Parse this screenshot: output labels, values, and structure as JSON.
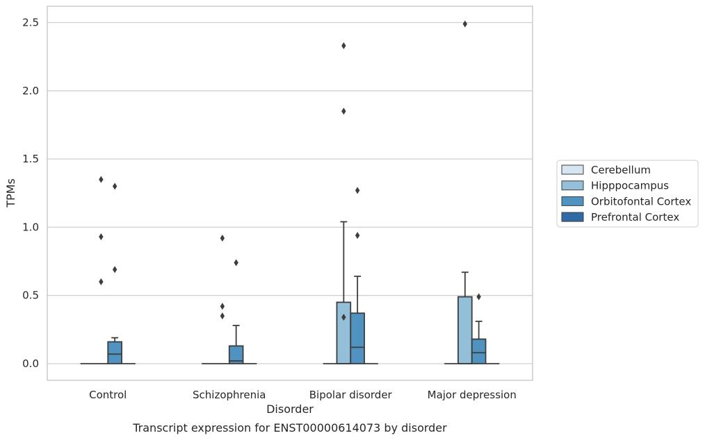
{
  "chart_data": {
    "type": "box",
    "title": "",
    "caption": "Transcript expression for ENST00000614073 by disorder",
    "xlabel": "Disorder",
    "ylabel": "TPMs",
    "ylim": [
      -0.12,
      2.62
    ],
    "yticks": [
      0.0,
      0.5,
      1.0,
      1.5,
      2.0,
      2.5
    ],
    "ytick_labels": [
      "0.0",
      "0.5",
      "1.0",
      "1.5",
      "2.0",
      "2.5"
    ],
    "grid": "horizontal",
    "legend_position": "right",
    "categories": [
      "Control",
      "Schizophrenia",
      "Bipolar disorder",
      "Major depression"
    ],
    "series": [
      {
        "name": "Cerebellum",
        "color": "#d5e5f2",
        "boxes": [
          {
            "q1": 0,
            "median": 0,
            "q3": 0,
            "whisker_low": 0,
            "whisker_high": 0,
            "outliers": []
          },
          {
            "q1": 0,
            "median": 0,
            "q3": 0,
            "whisker_low": 0,
            "whisker_high": 0,
            "outliers": []
          },
          {
            "q1": 0,
            "median": 0,
            "q3": 0,
            "whisker_low": 0,
            "whisker_high": 0,
            "outliers": []
          },
          {
            "q1": 0,
            "median": 0,
            "q3": 0,
            "whisker_low": 0,
            "whisker_high": 0,
            "outliers": []
          }
        ]
      },
      {
        "name": "Hipppocampus",
        "color": "#94bfd8",
        "boxes": [
          {
            "q1": 0,
            "median": 0,
            "q3": 0,
            "whisker_low": 0,
            "whisker_high": 0,
            "outliers": [
              0.6,
              0.93,
              1.35
            ]
          },
          {
            "q1": 0,
            "median": 0,
            "q3": 0,
            "whisker_low": 0,
            "whisker_high": 0,
            "outliers": [
              0.35,
              0.42,
              0.92
            ]
          },
          {
            "q1": 0,
            "median": 0,
            "q3": 0.45,
            "whisker_low": 0,
            "whisker_high": 1.04,
            "outliers": [
              0.34,
              1.85,
              2.33
            ]
          },
          {
            "q1": 0,
            "median": 0,
            "q3": 0.49,
            "whisker_low": 0,
            "whisker_high": 0.67,
            "outliers": [
              2.49
            ]
          }
        ]
      },
      {
        "name": "Orbitofontal Cortex",
        "color": "#5092c0",
        "boxes": [
          {
            "q1": 0,
            "median": 0.07,
            "q3": 0.16,
            "whisker_low": 0,
            "whisker_high": 0.19,
            "outliers": [
              0.69,
              1.3
            ]
          },
          {
            "q1": 0,
            "median": 0.02,
            "q3": 0.13,
            "whisker_low": 0,
            "whisker_high": 0.28,
            "outliers": [
              0.74
            ]
          },
          {
            "q1": 0,
            "median": 0.12,
            "q3": 0.37,
            "whisker_low": 0,
            "whisker_high": 0.64,
            "outliers": [
              0.94,
              1.27
            ]
          },
          {
            "q1": 0,
            "median": 0.08,
            "q3": 0.18,
            "whisker_low": 0,
            "whisker_high": 0.31,
            "outliers": [
              0.49
            ]
          }
        ]
      },
      {
        "name": "Prefrontal Cortex",
        "color": "#2f6ca6",
        "boxes": [
          {
            "q1": 0,
            "median": 0,
            "q3": 0,
            "whisker_low": 0,
            "whisker_high": 0,
            "outliers": []
          },
          {
            "q1": 0,
            "median": 0,
            "q3": 0,
            "whisker_low": 0,
            "whisker_high": 0,
            "outliers": []
          },
          {
            "q1": 0,
            "median": 0,
            "q3": 0,
            "whisker_low": 0,
            "whisker_high": 0,
            "outliers": []
          },
          {
            "q1": 0,
            "median": 0,
            "q3": 0,
            "whisker_low": 0,
            "whisker_high": 0,
            "outliers": []
          }
        ]
      }
    ]
  }
}
